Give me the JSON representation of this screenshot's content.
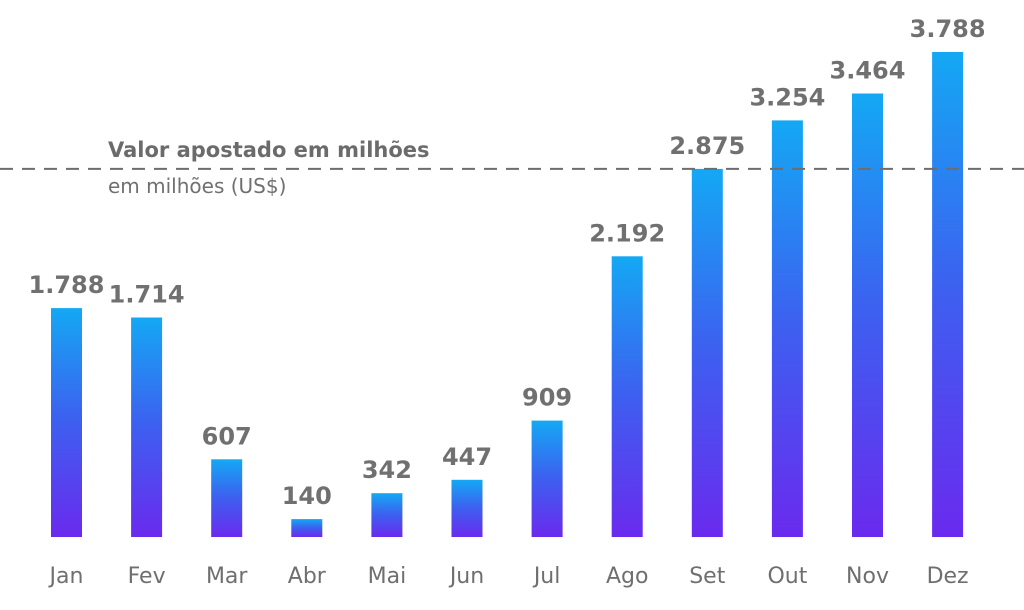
{
  "chart_data": {
    "type": "bar",
    "categories": [
      "Jan",
      "Fev",
      "Mar",
      "Abr",
      "Mai",
      "Jun",
      "Jul",
      "Ago",
      "Set",
      "Out",
      "Nov",
      "Dez"
    ],
    "values": [
      1788,
      1714,
      607,
      140,
      342,
      447,
      909,
      2192,
      2875,
      3254,
      3464,
      3788
    ],
    "value_labels": [
      "1.788",
      "1.714",
      "607",
      "140",
      "342",
      "447",
      "909",
      "2.192",
      "2.875",
      "3.254",
      "3.464",
      "3.788"
    ],
    "ylim": [
      0,
      3788
    ],
    "grid": false,
    "reference_line": {
      "value": 2875,
      "style": "dashed",
      "label": "Valor apostado em milhões",
      "sublabel": "em milhões (US$)"
    },
    "colors": {
      "bar_top": "#14a8f4",
      "bar_mid": "#3c61f0",
      "bar_bottom": "#6a2aee",
      "text": "#707070",
      "reference_line": "#6d6d6d"
    }
  }
}
